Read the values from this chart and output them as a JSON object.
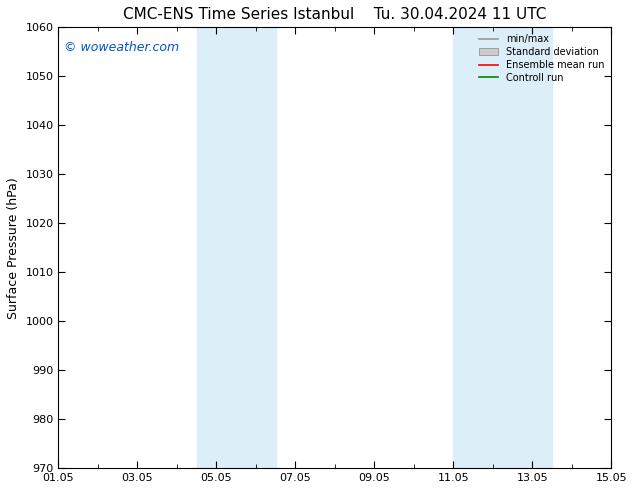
{
  "title_left": "CMC-ENS Time Series Istanbul",
  "title_right": "Tu. 30.04.2024 11 UTC",
  "ylabel": "Surface Pressure (hPa)",
  "ylim": [
    970,
    1060
  ],
  "yticks": [
    970,
    980,
    990,
    1000,
    1010,
    1020,
    1030,
    1040,
    1050,
    1060
  ],
  "xlim": [
    0,
    14
  ],
  "xtick_labels": [
    "01.05",
    "03.05",
    "05.05",
    "07.05",
    "09.05",
    "11.05",
    "13.05",
    "15.05"
  ],
  "xtick_positions": [
    0,
    2,
    4,
    6,
    8,
    10,
    12,
    14
  ],
  "watermark": "© woweather.com",
  "watermark_color": "#0055cc",
  "background_color": "#ffffff",
  "plot_bg_color": "#ffffff",
  "shaded_bands": [
    {
      "x_start": 3.5,
      "x_end": 4.5,
      "color": "#dceef8"
    },
    {
      "x_start": 4.5,
      "x_end": 5.5,
      "color": "#dceef8"
    },
    {
      "x_start": 10.0,
      "x_end": 11.0,
      "color": "#dceef8"
    },
    {
      "x_start": 11.0,
      "x_end": 12.5,
      "color": "#dceef8"
    }
  ],
  "legend_items": [
    {
      "label": "min/max",
      "color": "#999999",
      "style": "line"
    },
    {
      "label": "Standard deviation",
      "color": "#cccccc",
      "style": "band"
    },
    {
      "label": "Ensemble mean run",
      "color": "#ff0000",
      "style": "line"
    },
    {
      "label": "Controll run",
      "color": "#008800",
      "style": "line"
    }
  ],
  "grid_color": "#cccccc",
  "tick_color": "#000000",
  "spine_color": "#000000",
  "title_fontsize": 11,
  "label_fontsize": 9,
  "tick_fontsize": 8,
  "watermark_fontsize": 9
}
